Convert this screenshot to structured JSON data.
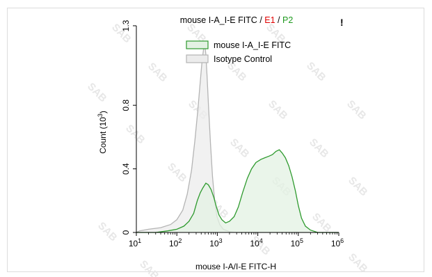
{
  "chart_data": {
    "type": "area",
    "title_parts": [
      {
        "text": "mouse I-A_I-E FITC ",
        "color": "#000000"
      },
      {
        "text": "/ ",
        "color": "#000000"
      },
      {
        "text": "E1",
        "color": "#e00000"
      },
      {
        "text": " / ",
        "color": "#000000"
      },
      {
        "text": "P2",
        "color": "#1f9a1f"
      }
    ],
    "corner_mark": "!",
    "xlabel": "mouse I-A/I-E FITC-H",
    "ylabel": "Count (10³)",
    "ylabel_parts": {
      "base": "Count (10",
      "exp": "3",
      "close": ")"
    },
    "x_scale": "log",
    "xlim": [
      10,
      1000000
    ],
    "ylim": [
      0,
      1.3
    ],
    "x_ticks": [
      {
        "value": 10,
        "base": "10",
        "exp": "1"
      },
      {
        "value": 100,
        "base": "10",
        "exp": "2"
      },
      {
        "value": 1000,
        "base": "10",
        "exp": "3"
      },
      {
        "value": 10000,
        "base": "10",
        "exp": "4"
      },
      {
        "value": 100000,
        "base": "10",
        "exp": "5"
      },
      {
        "value": 1000000,
        "base": "10",
        "exp": "6"
      }
    ],
    "y_ticks": [
      {
        "value": 0,
        "label": "0"
      },
      {
        "value": 0.4,
        "label": "0.4"
      },
      {
        "value": 0.8,
        "label": "0.8"
      },
      {
        "value": 1.3,
        "label": "1.3"
      }
    ],
    "legend_position": "top-right",
    "watermark": "SAB",
    "series": [
      {
        "name": "mouse I-A_I-E FITC",
        "stroke": "#2e9a2e",
        "fill": "#e3f1e3",
        "points": [
          [
            10,
            0.0
          ],
          [
            30,
            0.0
          ],
          [
            60,
            0.01
          ],
          [
            100,
            0.02
          ],
          [
            150,
            0.04
          ],
          [
            200,
            0.07
          ],
          [
            260,
            0.12
          ],
          [
            320,
            0.2
          ],
          [
            380,
            0.25
          ],
          [
            440,
            0.28
          ],
          [
            520,
            0.31
          ],
          [
            600,
            0.3
          ],
          [
            700,
            0.27
          ],
          [
            820,
            0.22
          ],
          [
            950,
            0.16
          ],
          [
            1100,
            0.11
          ],
          [
            1300,
            0.08
          ],
          [
            1600,
            0.06
          ],
          [
            2000,
            0.07
          ],
          [
            2600,
            0.1
          ],
          [
            3300,
            0.16
          ],
          [
            4200,
            0.25
          ],
          [
            5500,
            0.34
          ],
          [
            7000,
            0.4
          ],
          [
            9000,
            0.44
          ],
          [
            12000,
            0.46
          ],
          [
            15000,
            0.47
          ],
          [
            19000,
            0.48
          ],
          [
            23000,
            0.49
          ],
          [
            28000,
            0.51
          ],
          [
            34000,
            0.52
          ],
          [
            40000,
            0.5
          ],
          [
            48000,
            0.47
          ],
          [
            58000,
            0.42
          ],
          [
            70000,
            0.35
          ],
          [
            85000,
            0.26
          ],
          [
            100000,
            0.17
          ],
          [
            120000,
            0.09
          ],
          [
            150000,
            0.04
          ],
          [
            200000,
            0.015
          ],
          [
            300000,
            0.0
          ],
          [
            1000000,
            0.0
          ]
        ]
      },
      {
        "name": "Isotype Control",
        "stroke": "#b4b4b4",
        "fill": "#ececec",
        "points": [
          [
            10,
            0.0
          ],
          [
            12,
            0.01
          ],
          [
            20,
            0.02
          ],
          [
            40,
            0.03
          ],
          [
            70,
            0.05
          ],
          [
            100,
            0.08
          ],
          [
            140,
            0.14
          ],
          [
            180,
            0.24
          ],
          [
            230,
            0.39
          ],
          [
            280,
            0.58
          ],
          [
            330,
            0.77
          ],
          [
            380,
            0.95
          ],
          [
            420,
            1.08
          ],
          [
            460,
            1.16
          ],
          [
            490,
            1.18
          ],
          [
            520,
            1.12
          ],
          [
            560,
            0.98
          ],
          [
            610,
            0.78
          ],
          [
            680,
            0.55
          ],
          [
            760,
            0.35
          ],
          [
            860,
            0.2
          ],
          [
            980,
            0.1
          ],
          [
            1150,
            0.05
          ],
          [
            1400,
            0.02
          ],
          [
            2000,
            0.005
          ],
          [
            3000,
            0.0
          ],
          [
            1000000,
            0.0
          ]
        ]
      }
    ]
  },
  "colors": {
    "axis": "#000000",
    "watermark": "#e7e7e7"
  }
}
